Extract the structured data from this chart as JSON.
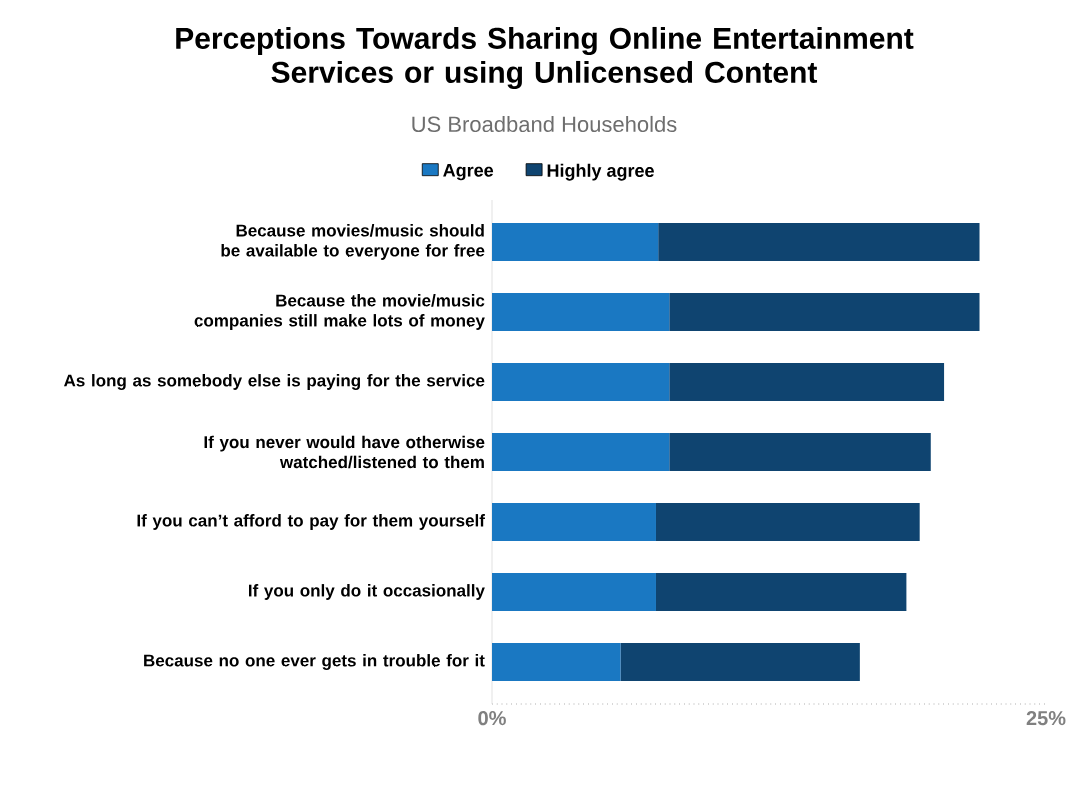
{
  "chart_data": {
    "type": "bar",
    "orientation": "horizontal",
    "stacked": true,
    "title": "Perceptions Towards Sharing Online Entertainment Services or using Unlicensed Content",
    "subtitle": "US Broadband Households",
    "categories": [
      "Because movies/music should be available to everyone for free",
      "Because the movie/music companies still make lots of money",
      "As long as somebody else is paying for the service",
      "If you never would have otherwise watched/listened to them",
      "If you can’t afford to pay for them yourself",
      "If you only do it occasionally",
      "Because no one ever gets in trouble for it"
    ],
    "series": [
      {
        "name": "Agree",
        "color": "#1a78c2",
        "values": [
          7.5,
          8.0,
          8.0,
          8.0,
          7.4,
          7.4,
          5.8
        ]
      },
      {
        "name": "Highly agree",
        "color": "#0f4470",
        "values": [
          14.5,
          14.0,
          12.4,
          11.8,
          11.9,
          11.3,
          10.8
        ]
      }
    ],
    "xlim": [
      0,
      25
    ],
    "xticks": [
      {
        "value": 0,
        "label": "0%"
      },
      {
        "value": 25,
        "label": "25%"
      }
    ],
    "legend": "top",
    "grid": false
  }
}
